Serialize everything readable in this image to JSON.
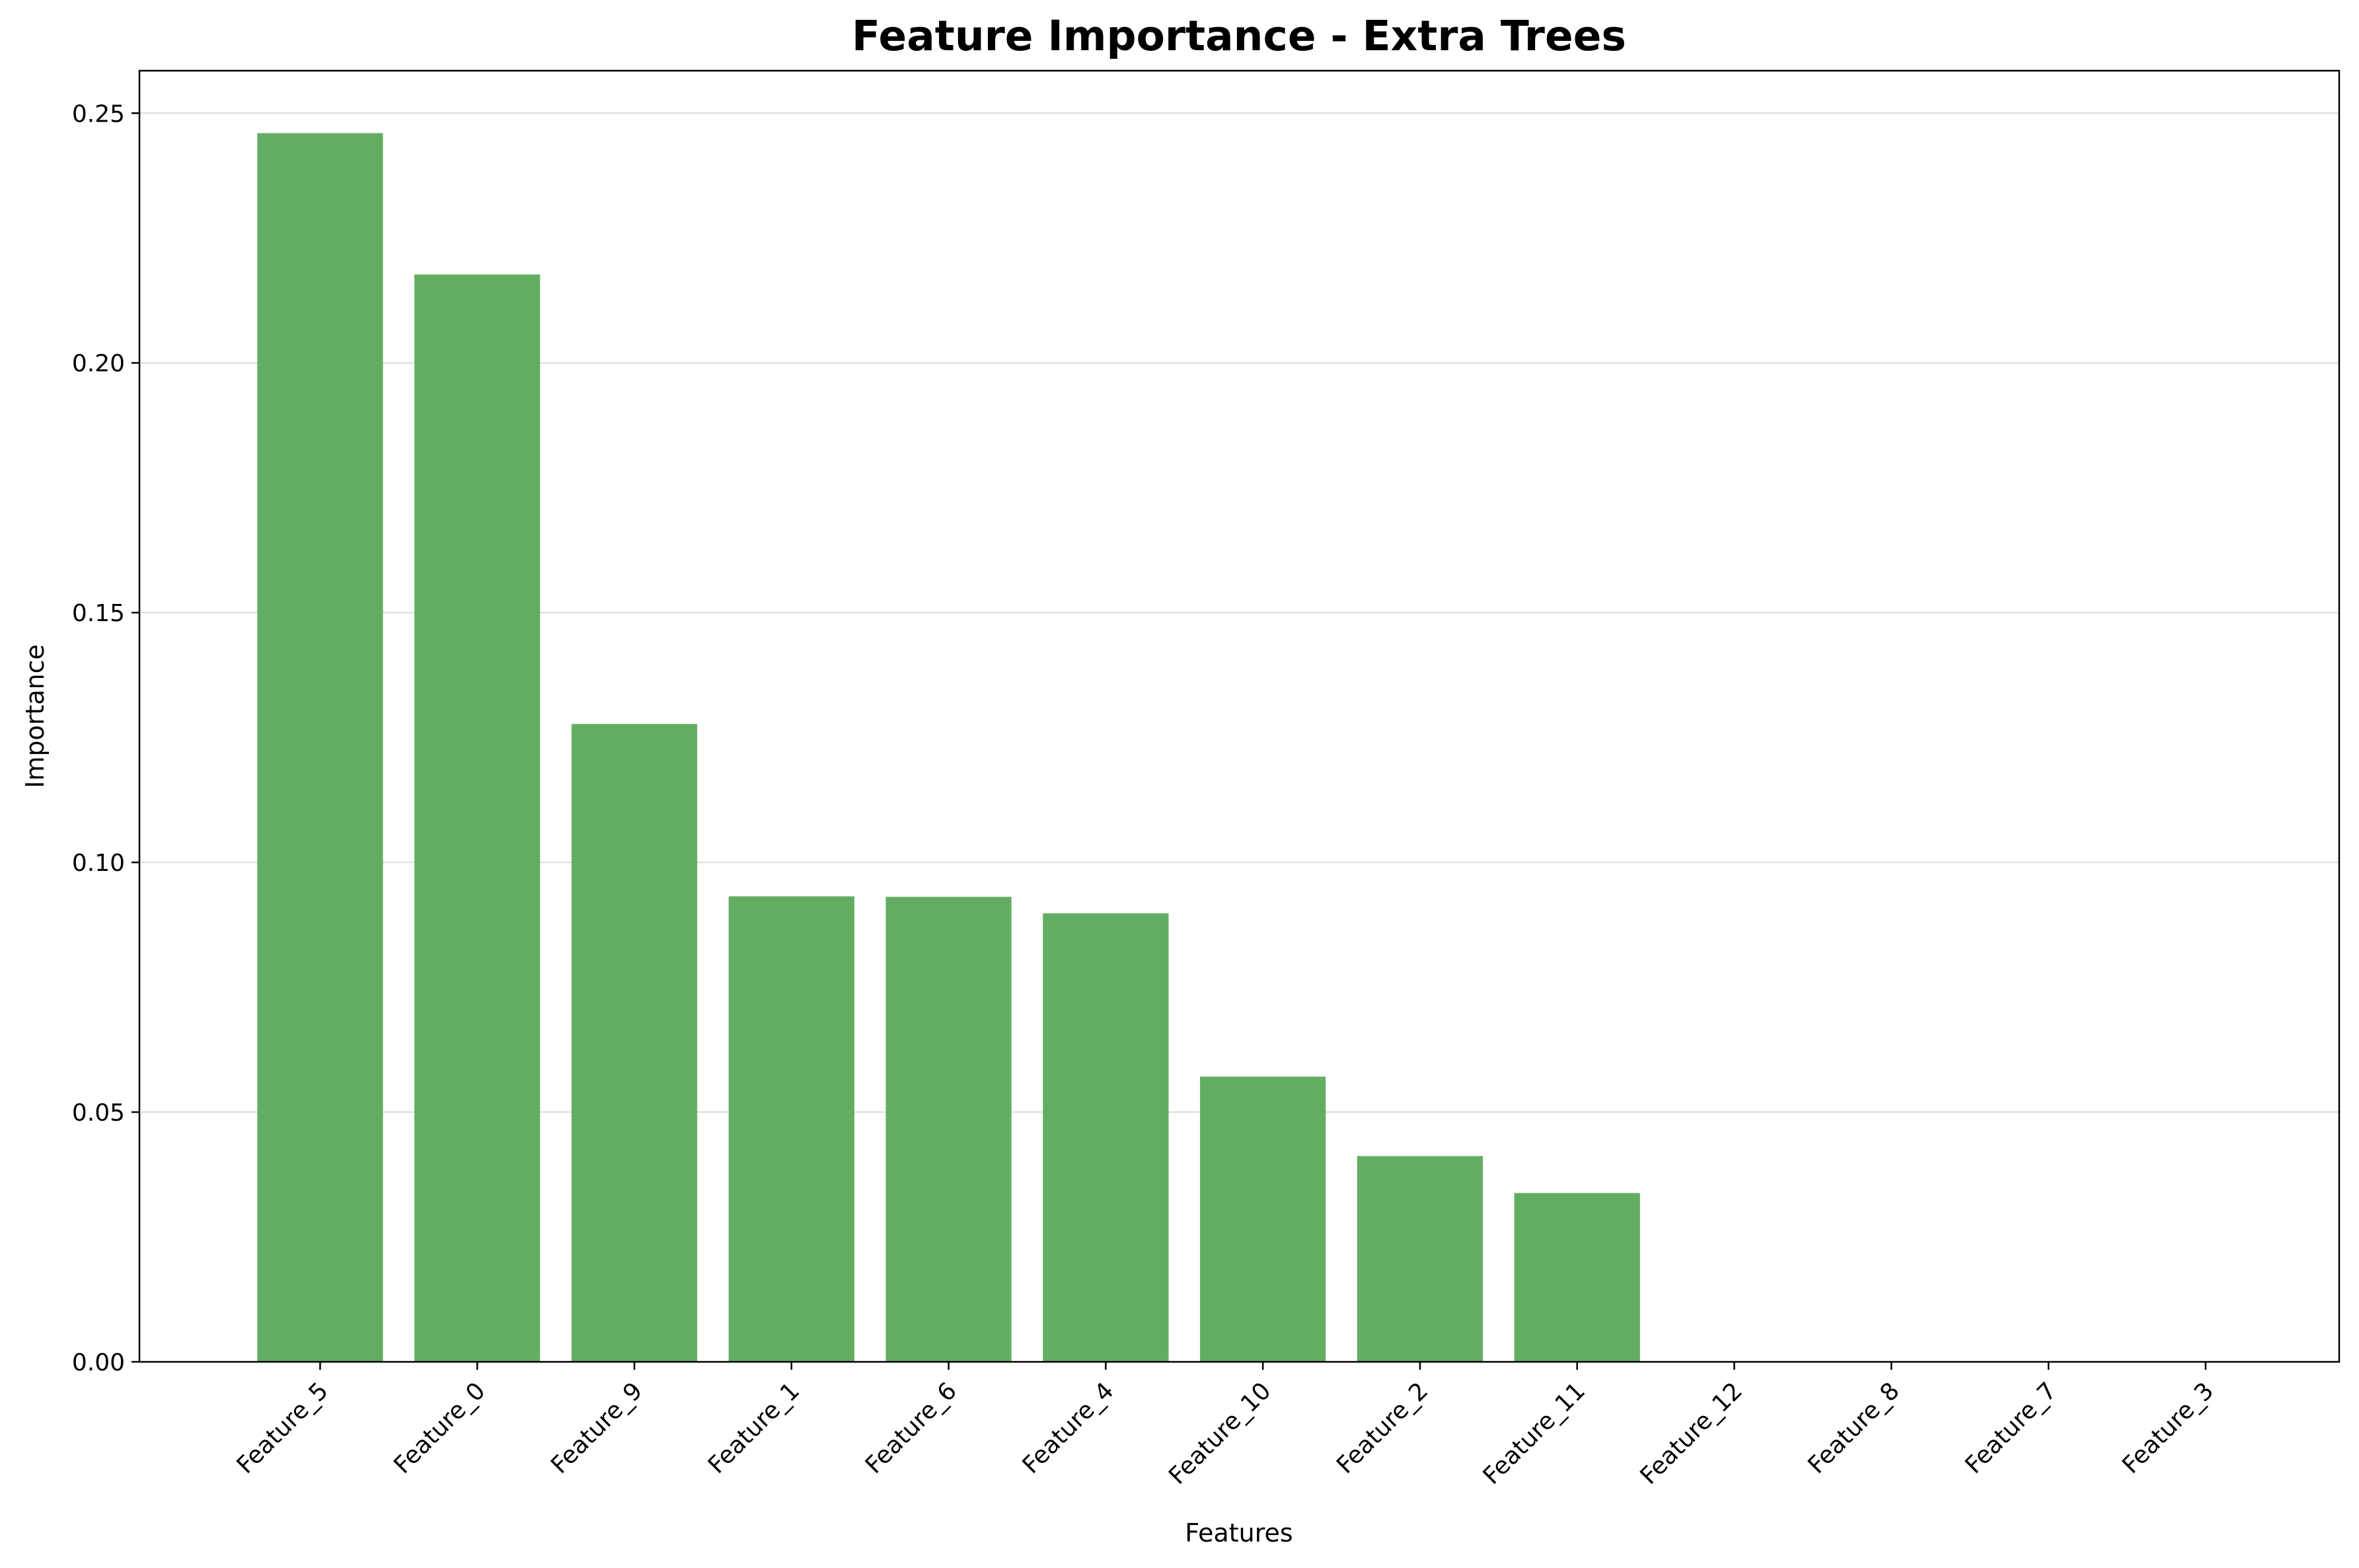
{
  "chart_data": {
    "type": "bar",
    "title": "Feature Importance - Extra Trees",
    "xlabel": "Features",
    "ylabel": "Importance",
    "categories": [
      "Feature_5",
      "Feature_0",
      "Feature_9",
      "Feature_1",
      "Feature_6",
      "Feature_4",
      "Feature_10",
      "Feature_2",
      "Feature_11",
      "Feature_12",
      "Feature_8",
      "Feature_7",
      "Feature_3"
    ],
    "values": [
      0.246,
      0.2177,
      0.1277,
      0.0932,
      0.0931,
      0.0898,
      0.0571,
      0.0412,
      0.0338,
      0.0,
      0.0,
      0.0,
      0.0
    ],
    "ylim": [
      0,
      0.2585
    ],
    "yticks": [
      0.0,
      0.05,
      0.1,
      0.15,
      0.2,
      0.25
    ],
    "ytick_labels": [
      "0.00",
      "0.05",
      "0.10",
      "0.15",
      "0.20",
      "0.25"
    ],
    "bar_color": "#63ad63",
    "grid": "y",
    "legend": "none"
  }
}
